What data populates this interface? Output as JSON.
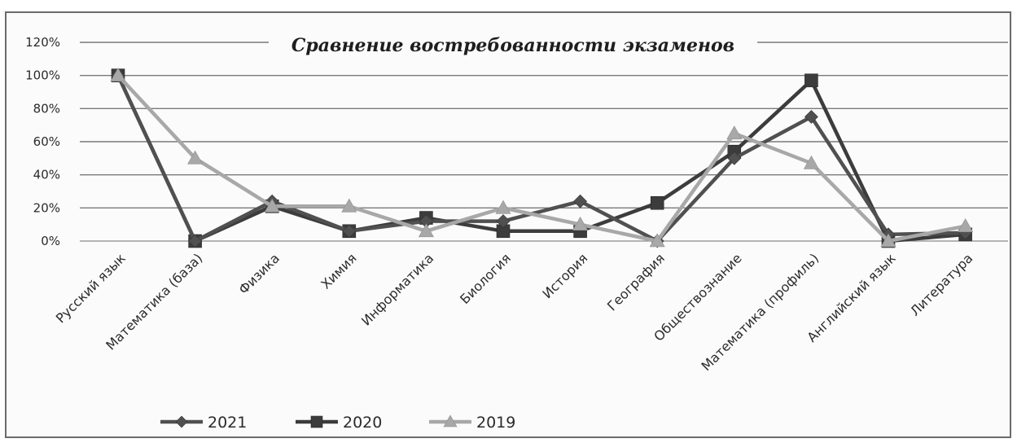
{
  "chart_data": {
    "type": "line",
    "title": "Сравнение востребованности экзаменов",
    "xlabel": "",
    "ylabel": "",
    "ylim": [
      0,
      1.2
    ],
    "y_ticks": [
      "0%",
      "20%",
      "40%",
      "60%",
      "80%",
      "100%",
      "120%"
    ],
    "grid": true,
    "legend_position": "bottom-left",
    "categories": [
      "Русский язык",
      "Математика (база)",
      "Физика",
      "Химия",
      "Информатика",
      "Биология",
      "История",
      "География",
      "Обществознание",
      "Математика (профиль)",
      "Английский язык",
      "Литература"
    ],
    "series": [
      {
        "name": "2021",
        "marker": "diamond",
        "color": "#505050",
        "values": [
          1.0,
          0.0,
          0.24,
          0.06,
          0.12,
          0.12,
          0.24,
          0.0,
          0.5,
          0.75,
          0.04,
          0.05
        ]
      },
      {
        "name": "2020",
        "marker": "square",
        "color": "#3c3c3c",
        "values": [
          1.0,
          0.0,
          0.21,
          0.06,
          0.14,
          0.06,
          0.06,
          0.23,
          0.54,
          0.97,
          0.0,
          0.04
        ]
      },
      {
        "name": "2019",
        "marker": "triangle",
        "color": "#a8a8a8",
        "values": [
          1.0,
          0.5,
          0.21,
          0.21,
          0.06,
          0.2,
          0.1,
          0.0,
          0.65,
          0.47,
          0.0,
          0.09
        ]
      }
    ]
  }
}
